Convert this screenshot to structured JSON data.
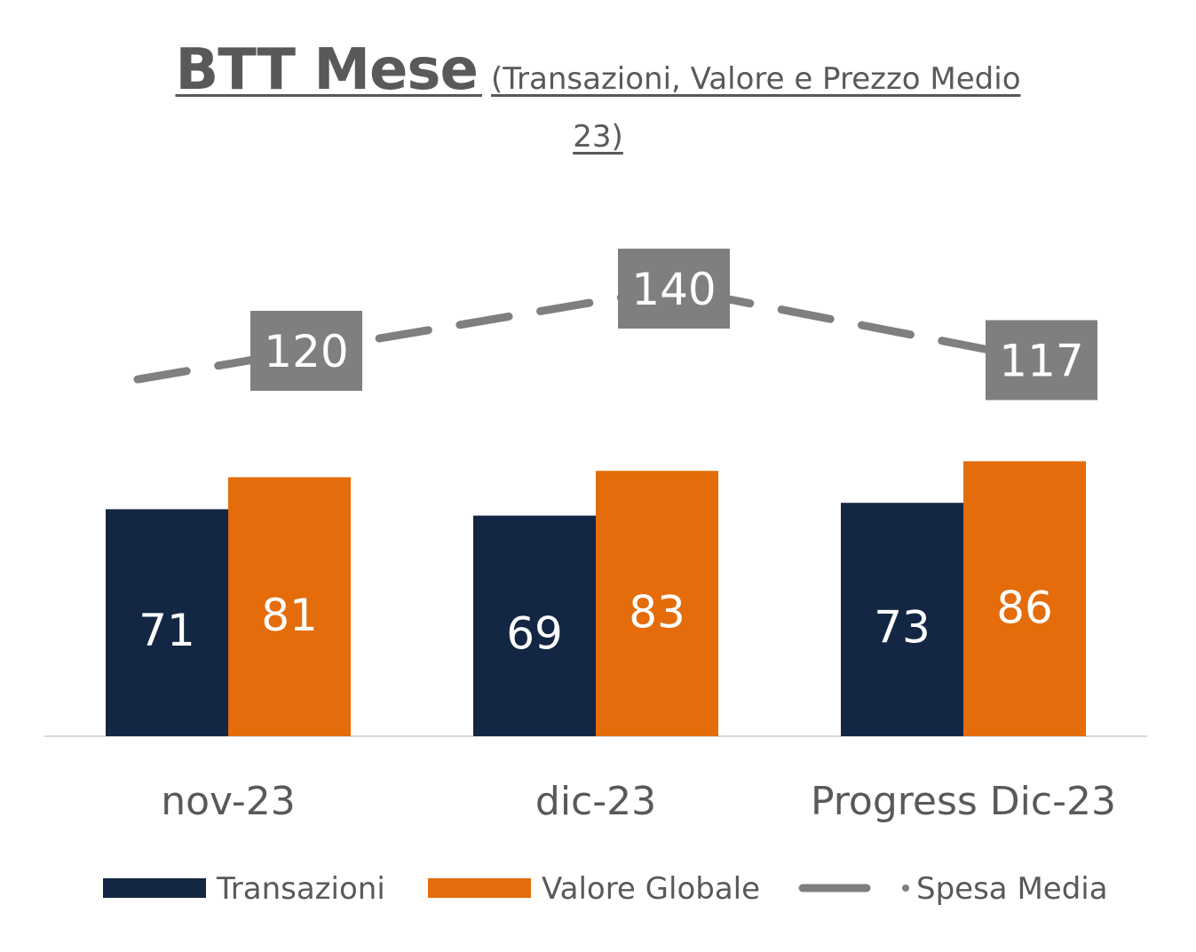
{
  "chart_data": {
    "type": "bar",
    "title": "BTT Mese",
    "subtitle_part1": "(Transazioni, Valore e Prezzo Medio",
    "subtitle_part2": "23)",
    "categories": [
      "nov-23",
      "dic-23",
      "Progress Dic-23"
    ],
    "series": [
      {
        "name": "Transazioni",
        "type": "bar",
        "color": "#132744",
        "values": [
          71,
          69,
          73
        ]
      },
      {
        "name": "Valore Globale",
        "type": "bar",
        "color": "#E46C0A",
        "values": [
          81,
          83,
          86
        ]
      },
      {
        "name": "Spesa Media",
        "type": "line",
        "style": "dashed",
        "color": "#7F7F7F",
        "label_bg": "#7F7F7F",
        "values": [
          120,
          140,
          117
        ]
      }
    ],
    "grid": false,
    "legend_position": "bottom",
    "axis_color": "#D9D9D9"
  }
}
